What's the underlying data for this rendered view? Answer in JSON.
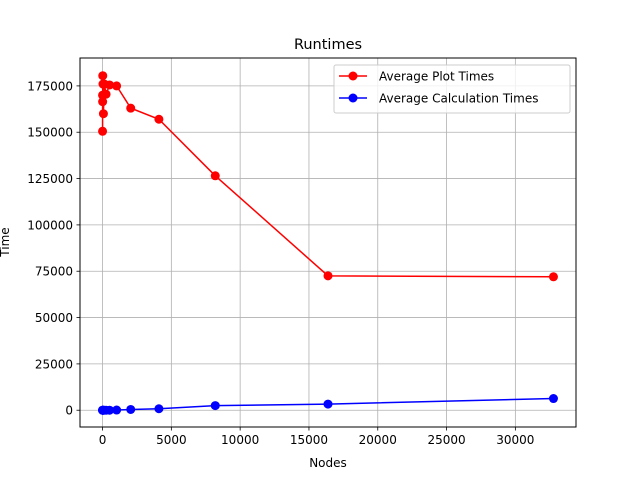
{
  "chart_data": {
    "type": "line",
    "title": "Runtimes",
    "xlabel": "Nodes",
    "ylabel": "Time",
    "xlim": [
      -1638,
      34406
    ],
    "ylim": [
      -9050,
      190050
    ],
    "xticks": [
      0,
      5000,
      10000,
      15000,
      20000,
      25000,
      30000
    ],
    "yticks": [
      0,
      25000,
      50000,
      75000,
      100000,
      125000,
      150000,
      175000
    ],
    "grid": true,
    "legend": "top-right",
    "x": [
      2,
      4,
      8,
      16,
      32,
      64,
      128,
      256,
      512,
      1024,
      2048,
      4096,
      8192,
      16384,
      32768
    ],
    "series": [
      {
        "name": "Average Plot Times",
        "color": "#ff0000",
        "marker": "circle",
        "values": [
          150500,
          170000,
          166500,
          180500,
          176000,
          160000,
          176000,
          170500,
          175500,
          175000,
          163000,
          157000,
          126500,
          72500,
          72000
        ]
      },
      {
        "name": "Average Calculation Times",
        "color": "#0000ff",
        "marker": "circle",
        "values": [
          0,
          0,
          0,
          0,
          0,
          0,
          0,
          0,
          0,
          100,
          400,
          800,
          2500,
          3300,
          6300
        ]
      }
    ]
  }
}
